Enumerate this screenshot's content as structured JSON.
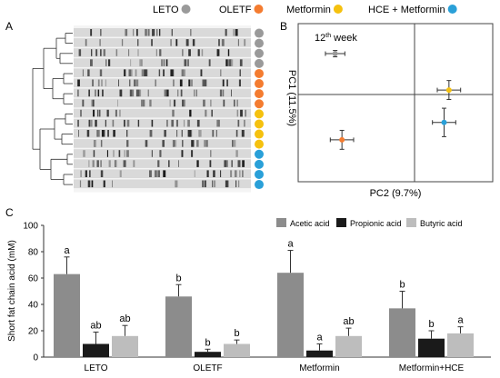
{
  "legend_top": {
    "items": [
      {
        "label": "LETO",
        "color": "#9a9a9a"
      },
      {
        "label": "OLETF",
        "color": "#f47c30"
      },
      {
        "label": "Metformin",
        "color": "#f5c10f"
      },
      {
        "label": "HCE + Metformin",
        "color": "#2aa0d8"
      }
    ]
  },
  "panels": {
    "A": "A",
    "B": "B",
    "C": "C"
  },
  "panel_a": {
    "lane_groups": [
      "LETO",
      "LETO",
      "LETO",
      "LETO",
      "OLETF",
      "OLETF",
      "OLETF",
      "OLETF",
      "Metformin",
      "Metformin",
      "Metformin",
      "Metformin",
      "HCE + Metformin",
      "HCE + Metformin",
      "HCE + Metformin",
      "HCE + Metformin"
    ]
  },
  "chart_data": [
    {
      "type": "scatter",
      "panel": "B",
      "annotation": {
        "base": "12",
        "sup": "th",
        "rest": " week"
      },
      "xlabel": "PC2 (9.7%)",
      "ylabel": "PC1 (11.5%)",
      "points": [
        {
          "group": "LETO",
          "color": "#9a9a9a",
          "x": -0.62,
          "y": 0.62,
          "xerr": 0.1,
          "yerr": 0.04
        },
        {
          "group": "OLETF",
          "color": "#f47c30",
          "x": -0.55,
          "y": -0.47,
          "xerr": 0.12,
          "yerr": 0.12
        },
        {
          "group": "Metformin",
          "color": "#f5c10f",
          "x": 0.55,
          "y": 0.16,
          "xerr": 0.12,
          "yerr": 0.12
        },
        {
          "group": "HCE + Metformin",
          "color": "#2aa0d8",
          "x": 0.5,
          "y": -0.25,
          "xerr": 0.12,
          "yerr": 0.18
        }
      ],
      "xlim": [
        -1,
        1
      ],
      "ylim": [
        -1,
        1
      ]
    },
    {
      "type": "bar",
      "panel": "C",
      "categories": [
        "LETO",
        "OLETF",
        "Metformin",
        "Metformin+HCE"
      ],
      "series": [
        {
          "name": "Acetic acid",
          "color": "#8c8c8c",
          "values": [
            63,
            46,
            64,
            37
          ],
          "errors": [
            13,
            9,
            17,
            13
          ],
          "labels": [
            "a",
            "b",
            "a",
            "b"
          ]
        },
        {
          "name": "Propionic acid",
          "color": "#1a1a1a",
          "values": [
            10,
            4,
            5,
            14
          ],
          "errors": [
            9,
            2,
            5,
            6
          ],
          "labels": [
            "ab",
            "b",
            "a",
            "b"
          ]
        },
        {
          "name": "Butyric acid",
          "color": "#bdbdbd",
          "values": [
            16,
            10,
            16,
            18
          ],
          "errors": [
            8,
            3,
            6,
            5
          ],
          "labels": [
            "ab",
            "b",
            "ab",
            "a"
          ]
        }
      ],
      "ylabel": "Short fat chain acid (mM)",
      "ylim": [
        0,
        100
      ],
      "yticks": [
        0,
        20,
        40,
        60,
        80,
        100
      ]
    }
  ]
}
